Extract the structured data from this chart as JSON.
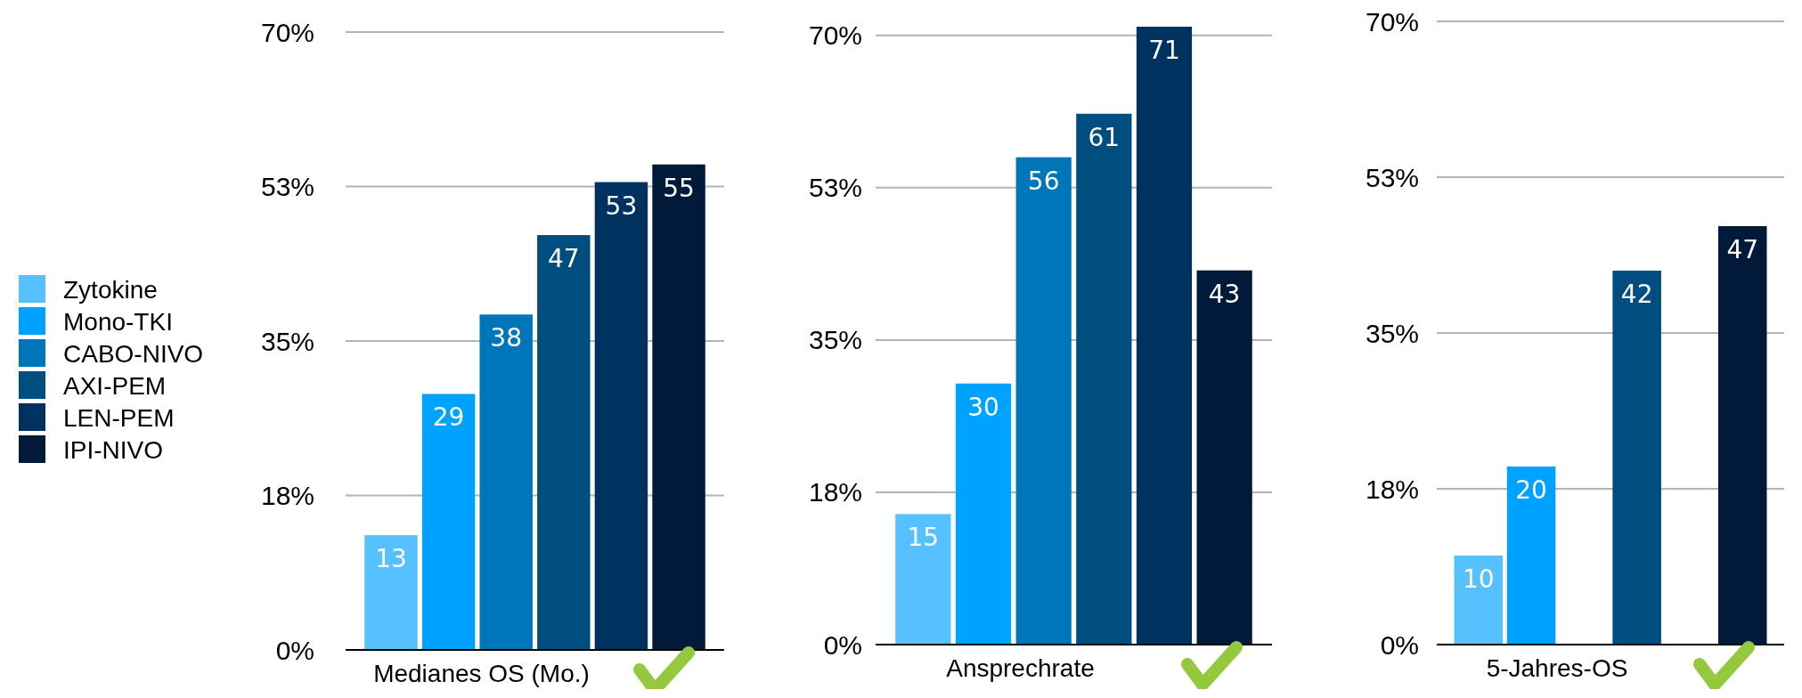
{
  "chart_data": [
    {
      "type": "bar",
      "xlabel": "Medianes OS (Mo.)",
      "categories": [
        null
      ],
      "legend": "left",
      "data_labels": true,
      "grid": "y",
      "ylim": [
        0,
        70
      ],
      "yticks": [
        {
          "value": 0,
          "label": "0%"
        },
        {
          "value": 17.5,
          "label": "18%"
        },
        {
          "value": 35,
          "label": "35%"
        },
        {
          "value": 52.5,
          "label": "53%"
        },
        {
          "value": 70,
          "label": "70%"
        }
      ],
      "series": [
        {
          "name": "Zytokine",
          "color": "#56c1ff",
          "values": [
            13
          ]
        },
        {
          "name": "Mono-TKI",
          "color": "#00a2ff",
          "values": [
            29
          ]
        },
        {
          "name": "CABO-NIVO",
          "color": "#0076ba",
          "values": [
            38
          ]
        },
        {
          "name": "AXI-PEM",
          "color": "#004d80",
          "values": [
            47
          ]
        },
        {
          "name": "LEN-PEM",
          "color": "#00325f",
          "values": [
            53
          ]
        },
        {
          "name": "IPI-NIVO",
          "color": "#011a3a",
          "values": [
            55
          ]
        }
      ]
    },
    {
      "type": "bar",
      "xlabel": "Ansprechrate",
      "categories": [
        null
      ],
      "data_labels": true,
      "grid": "y",
      "ylim": [
        0,
        71
      ],
      "yticks": [
        {
          "value": 0,
          "label": "0%"
        },
        {
          "value": 17.5,
          "label": "18%"
        },
        {
          "value": 35,
          "label": "35%"
        },
        {
          "value": 52.5,
          "label": "53%"
        },
        {
          "value": 70,
          "label": "70%"
        }
      ],
      "series": [
        {
          "color": "#56c1ff",
          "values": [
            15
          ]
        },
        {
          "color": "#00a2ff",
          "values": [
            30
          ]
        },
        {
          "color": "#0076ba",
          "values": [
            56
          ]
        },
        {
          "color": "#004d80",
          "values": [
            61
          ]
        },
        {
          "color": "#00325f",
          "values": [
            71
          ]
        },
        {
          "color": "#011a3a",
          "values": [
            43
          ]
        }
      ]
    },
    {
      "type": "bar",
      "xlabel": "5-Jahres-OS",
      "categories": [
        null
      ],
      "data_labels": true,
      "grid": "y",
      "ylim": [
        0,
        70
      ],
      "yticks": [
        {
          "value": 0,
          "label": "0%"
        },
        {
          "value": 17.5,
          "label": "18%"
        },
        {
          "value": 35,
          "label": "35%"
        },
        {
          "value": 52.5,
          "label": "53%"
        },
        {
          "value": 70,
          "label": "70%"
        }
      ],
      "series": [
        {
          "color": "#56c1ff",
          "values": [
            10
          ]
        },
        {
          "color": "#00a2ff",
          "values": [
            20
          ]
        },
        {
          "values": [
            null
          ]
        },
        {
          "color": "#004d80",
          "values": [
            42
          ]
        },
        {
          "values": [
            null
          ]
        },
        {
          "color": "#011a3a",
          "values": [
            47
          ]
        }
      ]
    }
  ]
}
